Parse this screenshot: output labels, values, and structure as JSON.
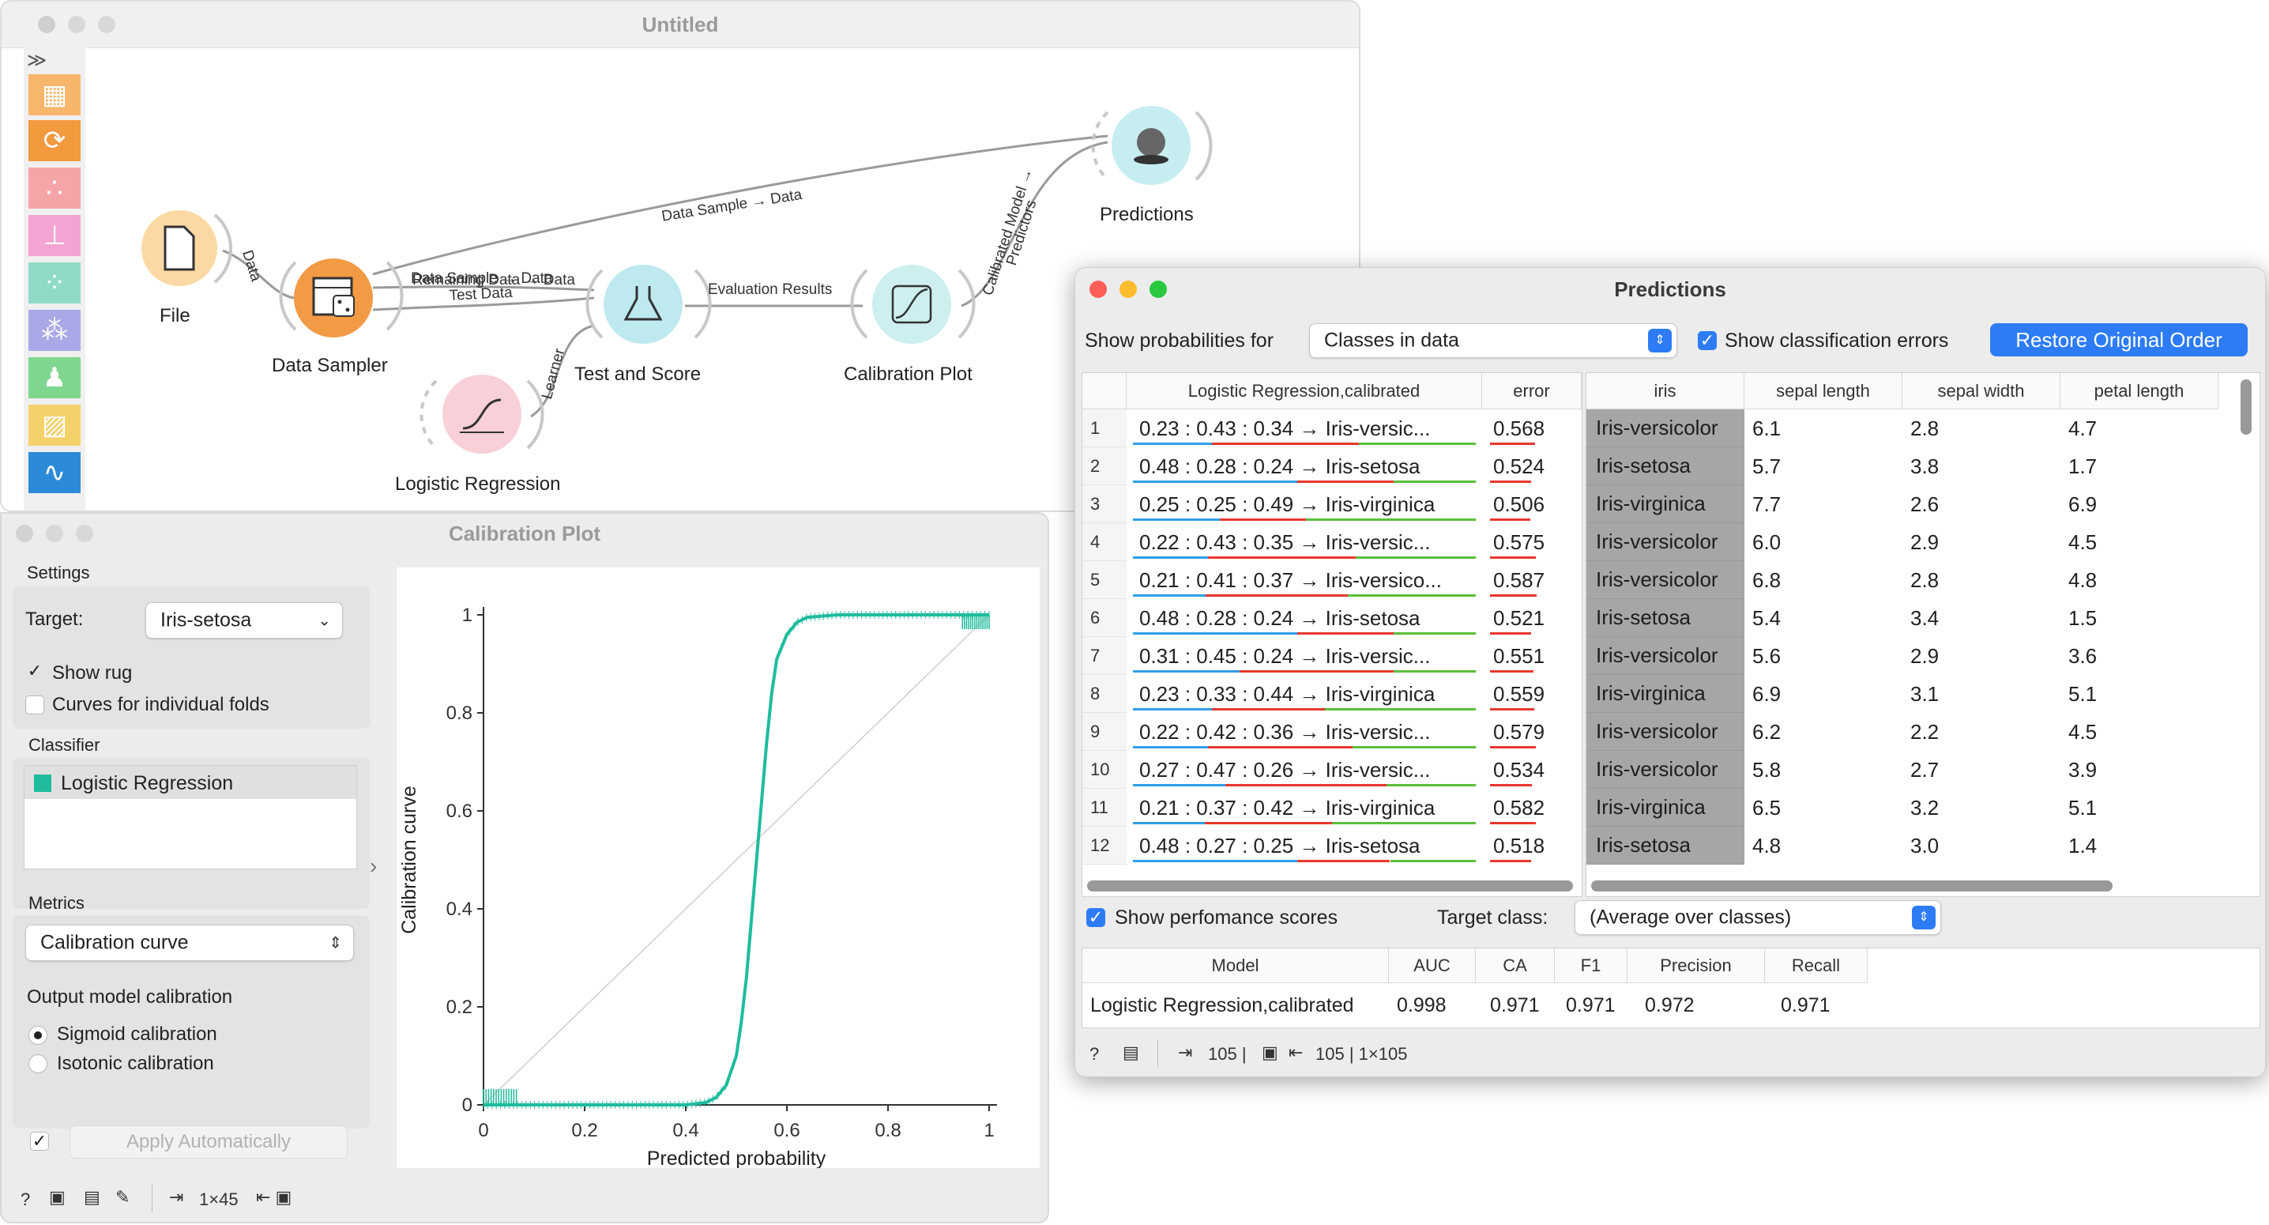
{
  "workflow": {
    "title": "Untitled",
    "nodes": {
      "file": "File",
      "data_sampler": "Data Sampler",
      "test_and_score": "Test and Score",
      "calibration_plot": "Calibration Plot",
      "logistic_regression": "Logistic Regression",
      "predictions": "Predictions"
    },
    "links": {
      "data": "Data",
      "data_sample_data": "Data Sample → Data",
      "data_sample_data_overlap": "Data Sample → Data",
      "remaining_data": "Remaining Data → Data",
      "test_data": "Test Data",
      "learner": "Learner",
      "evaluation_results": "Evaluation Results",
      "calibrated_model_1": "Calibrated Model →",
      "calibrated_model_2": "Predictors"
    },
    "tool_icons": [
      "table-icon",
      "transform-icon",
      "scatter-icon",
      "tree-icon",
      "distance-matrix-icon",
      "cluster-icon",
      "explain-icon",
      "image-icon",
      "line-chart-icon"
    ]
  },
  "calibration": {
    "title": "Calibration Plot",
    "settings_label": "Settings",
    "target_label": "Target:",
    "target_value": "Iris-setosa",
    "show_rug": "Show rug",
    "show_rug_checked": true,
    "curves_folds": "Curves for individual folds",
    "curves_folds_checked": false,
    "classifier_label": "Classifier",
    "classifiers": [
      "Logistic Regression"
    ],
    "classifier_color": "#1ebc9d",
    "metrics_label": "Metrics",
    "metric_value": "Calibration curve",
    "output_calibration_label": "Output model calibration",
    "sigmoid": "Sigmoid calibration",
    "isotonic": "Isotonic calibration",
    "calibration_selected": "sigmoid",
    "apply_auto": "Apply Automatically",
    "apply_auto_checked": true,
    "status_out": "1×45"
  },
  "chart_data": {
    "type": "line",
    "title": "",
    "xlabel": "Predicted probability",
    "ylabel": "Calibration curve",
    "xlim": [
      0,
      1
    ],
    "ylim": [
      0,
      1
    ],
    "xticks": [
      "0",
      "0.2",
      "0.4",
      "0.6",
      "0.8",
      "1"
    ],
    "yticks": [
      "0",
      "0.2",
      "0.4",
      "0.6",
      "0.8",
      "1"
    ],
    "grid": false,
    "diagonal": true,
    "series": [
      {
        "name": "Logistic Regression",
        "color": "#1ebc9d",
        "x": [
          0.0,
          0.05,
          0.1,
          0.2,
          0.3,
          0.4,
          0.44,
          0.46,
          0.48,
          0.5,
          0.51,
          0.52,
          0.53,
          0.54,
          0.55,
          0.56,
          0.57,
          0.58,
          0.6,
          0.62,
          0.64,
          0.7,
          0.8,
          0.9,
          1.0
        ],
        "y": [
          0.0,
          0.0,
          0.0,
          0.0,
          0.0,
          0.0,
          0.005,
          0.015,
          0.04,
          0.1,
          0.17,
          0.26,
          0.38,
          0.5,
          0.62,
          0.74,
          0.84,
          0.91,
          0.96,
          0.985,
          0.995,
          1.0,
          1.0,
          1.0,
          1.0
        ]
      }
    ]
  },
  "predictions": {
    "title": "Predictions",
    "show_probs_label": "Show probabilities for",
    "show_probs_value": "Classes in data",
    "show_errors_label": "Show classification errors",
    "show_errors_checked": true,
    "restore_button": "Restore Original Order",
    "left_headers": [
      "Logistic Regression,calibrated",
      "error"
    ],
    "right_headers": [
      "iris",
      "sepal length",
      "sepal width",
      "petal length"
    ],
    "rows": [
      {
        "n": "1",
        "pred": "0.23 : 0.43 : 0.34 → Iris-versic...",
        "err": "0.568",
        "iris": "Iris-versicolor",
        "sl": "6.1",
        "sw": "2.8",
        "pl": "4.7",
        "e": 0.568
      },
      {
        "n": "2",
        "pred": "0.48 : 0.28 : 0.24 → Iris-setosa",
        "err": "0.524",
        "iris": "Iris-setosa",
        "sl": "5.7",
        "sw": "3.8",
        "pl": "1.7",
        "e": 0.524
      },
      {
        "n": "3",
        "pred": "0.25 : 0.25 : 0.49 → Iris-virginica",
        "err": "0.506",
        "iris": "Iris-virginica",
        "sl": "7.7",
        "sw": "2.6",
        "pl": "6.9",
        "e": 0.506
      },
      {
        "n": "4",
        "pred": "0.22 : 0.43 : 0.35 → Iris-versic...",
        "err": "0.575",
        "iris": "Iris-versicolor",
        "sl": "6.0",
        "sw": "2.9",
        "pl": "4.5",
        "e": 0.575
      },
      {
        "n": "5",
        "pred": "0.21 : 0.41 : 0.37 → Iris-versico...",
        "err": "0.587",
        "iris": "Iris-versicolor",
        "sl": "6.8",
        "sw": "2.8",
        "pl": "4.8",
        "e": 0.587
      },
      {
        "n": "6",
        "pred": "0.48 : 0.28 : 0.24 → Iris-setosa",
        "err": "0.521",
        "iris": "Iris-setosa",
        "sl": "5.4",
        "sw": "3.4",
        "pl": "1.5",
        "e": 0.521
      },
      {
        "n": "7",
        "pred": "0.31 : 0.45 : 0.24 → Iris-versic...",
        "err": "0.551",
        "iris": "Iris-versicolor",
        "sl": "5.6",
        "sw": "2.9",
        "pl": "3.6",
        "e": 0.551
      },
      {
        "n": "8",
        "pred": "0.23 : 0.33 : 0.44 → Iris-virginica",
        "err": "0.559",
        "iris": "Iris-virginica",
        "sl": "6.9",
        "sw": "3.1",
        "pl": "5.1",
        "e": 0.559
      },
      {
        "n": "9",
        "pred": "0.22 : 0.42 : 0.36 → Iris-versic...",
        "err": "0.579",
        "iris": "Iris-versicolor",
        "sl": "6.2",
        "sw": "2.2",
        "pl": "4.5",
        "e": 0.579
      },
      {
        "n": "10",
        "pred": "0.27 : 0.47 : 0.26 → Iris-versic...",
        "err": "0.534",
        "iris": "Iris-versicolor",
        "sl": "5.8",
        "sw": "2.7",
        "pl": "3.9",
        "e": 0.534
      },
      {
        "n": "11",
        "pred": "0.21 : 0.37 : 0.42 → Iris-virginica",
        "err": "0.582",
        "iris": "Iris-virginica",
        "sl": "6.5",
        "sw": "3.2",
        "pl": "5.1",
        "e": 0.582
      },
      {
        "n": "12",
        "pred": "0.48 : 0.27 : 0.25 → Iris-setosa",
        "err": "0.518",
        "iris": "Iris-setosa",
        "sl": "4.8",
        "sw": "3.0",
        "pl": "1.4",
        "e": 0.518
      }
    ],
    "class_colors": {
      "Iris-setosa": "#2f9fe8",
      "Iris-versicolor": "#e8372f",
      "Iris-virginica": "#5bbf3a"
    },
    "show_perf_label": "Show perfomance scores",
    "show_perf_checked": true,
    "target_class_label": "Target class:",
    "target_class_value": "(Average over classes)",
    "score_headers": [
      "Model",
      "AUC",
      "CA",
      "F1",
      "Precision",
      "Recall"
    ],
    "score_row": [
      "Logistic Regression,calibrated",
      "0.998",
      "0.971",
      "0.971",
      "0.972",
      "0.971"
    ],
    "status_in": "105 |",
    "status_out": "105 | 1×105"
  }
}
